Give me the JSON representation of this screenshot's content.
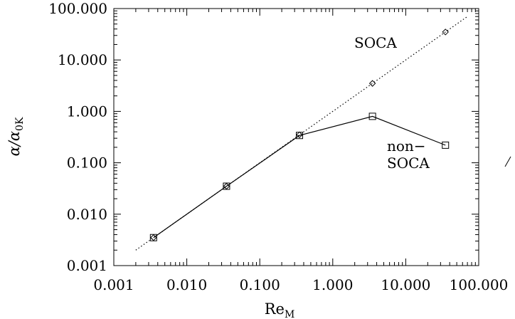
{
  "chart_data": {
    "type": "line",
    "xscale": "log",
    "yscale": "log",
    "xlim": [
      0.001,
      100.0
    ],
    "ylim": [
      0.001,
      100.0
    ],
    "x_ticks": [
      "0.001",
      "0.010",
      "0.100",
      "1.000",
      "10.000",
      "100.000"
    ],
    "y_ticks": [
      "0.001",
      "0.010",
      "0.100",
      "1.000",
      "10.000",
      "100.000"
    ],
    "xlabel": "Re",
    "xlabel_sub": "M",
    "ylabel": "α/α",
    "ylabel_sub": "0K",
    "grid": false,
    "legend": "none",
    "series": [
      {
        "name": "SOCA",
        "style": "dotted line with diamond markers",
        "line": {
          "x": [
            0.002,
            70.0
          ],
          "y": [
            0.002,
            70.0
          ]
        },
        "points": {
          "x": [
            0.0035,
            0.035,
            0.35,
            3.5,
            35.0
          ],
          "y": [
            0.0035,
            0.035,
            0.35,
            3.5,
            35.0
          ]
        }
      },
      {
        "name": "non-SOCA",
        "style": "solid line with square markers",
        "x": [
          0.0035,
          0.035,
          0.35,
          3.5,
          35.0
        ],
        "y": [
          0.0035,
          0.035,
          0.34,
          0.8,
          0.22
        ]
      }
    ],
    "annotations": [
      {
        "text": "SOCA"
      },
      {
        "text": "non−"
      },
      {
        "text": "SOCA"
      }
    ]
  }
}
